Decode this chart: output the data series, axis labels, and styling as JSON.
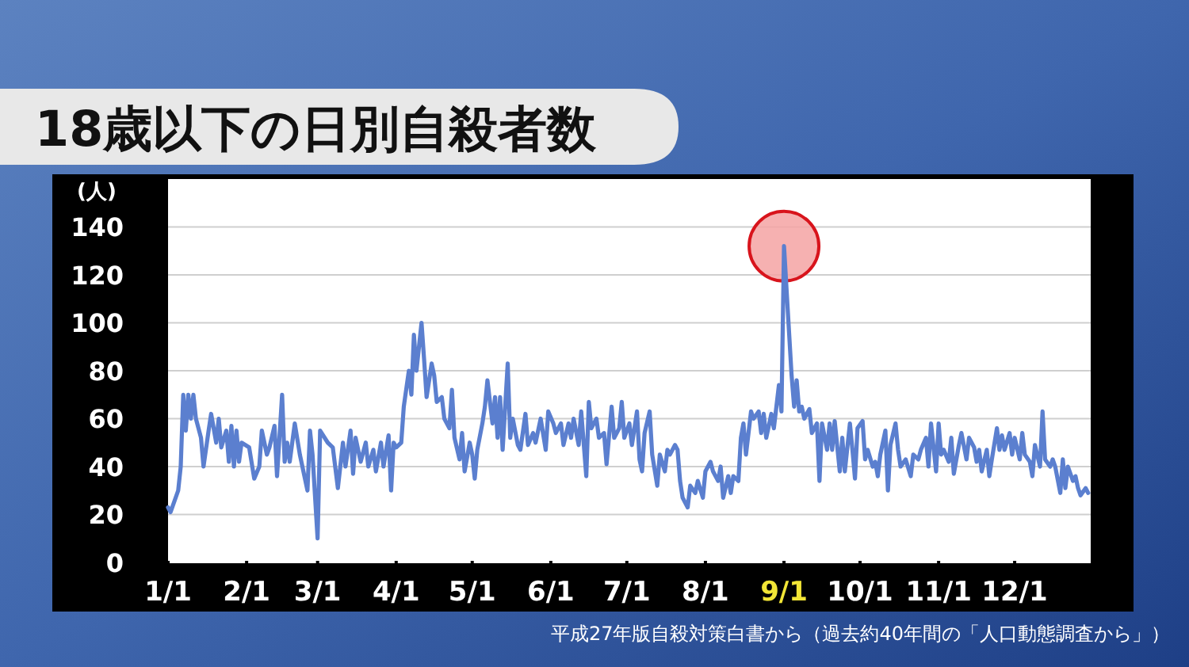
{
  "chart_data": {
    "type": "line",
    "title": "18歳以下の日別自殺者数",
    "ylabel": "(人)",
    "annotations": [
      "平成27年版自殺対策白書から（過去約40年間の「人口動態調査から」）"
    ],
    "x": [
      "--01-01",
      "--01-02",
      "--01-05",
      "--01-06",
      "--01-07",
      "--01-08",
      "--01-09",
      "--01-10",
      "--01-11",
      "--01-12",
      "--01-14",
      "--01-15",
      "--01-17",
      "--01-18",
      "--01-20",
      "--01-21",
      "--01-22",
      "--01-24",
      "--01-25",
      "--01-26",
      "--01-27",
      "--01-28",
      "--01-29",
      "--01-30",
      "--02-02",
      "--02-04",
      "--02-06",
      "--02-07",
      "--02-09",
      "--02-10",
      "--02-12",
      "--02-13",
      "--02-15",
      "--02-16",
      "--02-17",
      "--02-18",
      "--02-20",
      "--02-22",
      "--02-25",
      "--02-26",
      "--02-27",
      "--03-01",
      "--03-02",
      "--03-05",
      "--03-07",
      "--03-09",
      "--03-11",
      "--03-12",
      "--03-14",
      "--03-15",
      "--03-16",
      "--03-18",
      "--03-20",
      "--03-21",
      "--03-23",
      "--03-24",
      "--03-26",
      "--03-27",
      "--03-29",
      "--03-30",
      "--03-31",
      "--04-01",
      "--04-03",
      "--04-04",
      "--04-06",
      "--04-07",
      "--04-08",
      "--04-09",
      "--04-11",
      "--04-12",
      "--04-13",
      "--04-15",
      "--04-16",
      "--04-17",
      "--04-19",
      "--04-20",
      "--04-22",
      "--04-23",
      "--04-24",
      "--04-26",
      "--04-27",
      "--04-28",
      "--04-30",
      "--05-01",
      "--05-02",
      "--05-03",
      "--05-05",
      "--05-06",
      "--05-07",
      "--05-09",
      "--05-10",
      "--05-11",
      "--05-12",
      "--05-13",
      "--05-15",
      "--05-16",
      "--05-17",
      "--05-19",
      "--05-20",
      "--05-22",
      "--05-23",
      "--05-25",
      "--05-26",
      "--05-28",
      "--05-30",
      "--05-31",
      "--06-02",
      "--06-03",
      "--06-05",
      "--06-06",
      "--06-08",
      "--06-09",
      "--06-10",
      "--06-12",
      "--06-13",
      "--06-15",
      "--06-16",
      "--06-17",
      "--06-19",
      "--06-20",
      "--06-22",
      "--06-23",
      "--06-25",
      "--06-26",
      "--06-28",
      "--06-29",
      "--06-30",
      "--07-02",
      "--07-03",
      "--07-05",
      "--07-06",
      "--07-07",
      "--07-08",
      "--07-10",
      "--07-11",
      "--07-13",
      "--07-14",
      "--07-16",
      "--07-17",
      "--07-18",
      "--07-20",
      "--07-21",
      "--07-22",
      "--07-23",
      "--07-25",
      "--07-26",
      "--07-28",
      "--07-29",
      "--07-31",
      "--08-01",
      "--08-03",
      "--08-04",
      "--08-06",
      "--08-07",
      "--08-08",
      "--08-10",
      "--08-11",
      "--08-12",
      "--08-14",
      "--08-15",
      "--08-16",
      "--08-17",
      "--08-19",
      "--08-20",
      "--08-22",
      "--08-23",
      "--08-24",
      "--08-25",
      "--08-27",
      "--08-28",
      "--08-29",
      "--08-30",
      "--08-31",
      "--09-01",
      "--09-03",
      "--09-04",
      "--09-05",
      "--09-06",
      "--09-07",
      "--09-08",
      "--09-09",
      "--09-11",
      "--09-12",
      "--09-14",
      "--09-15",
      "--09-16",
      "--09-18",
      "--09-19",
      "--09-20",
      "--09-21",
      "--09-23",
      "--09-24",
      "--09-25",
      "--09-27",
      "--09-28",
      "--09-29",
      "--09-30",
      "--10-02",
      "--10-03",
      "--10-04",
      "--10-06",
      "--10-07",
      "--10-08",
      "--10-09",
      "--10-11",
      "--10-12",
      "--10-13",
      "--10-15",
      "--10-16",
      "--10-17",
      "--10-19",
      "--10-21",
      "--10-22",
      "--10-24",
      "--10-25",
      "--10-27",
      "--10-28",
      "--10-29",
      "--10-31",
      "--11-01",
      "--11-02",
      "--11-03",
      "--11-05",
      "--11-06",
      "--11-07",
      "--11-09",
      "--11-10",
      "--11-12",
      "--11-13",
      "--11-15",
      "--11-16",
      "--11-17",
      "--11-18",
      "--11-20",
      "--11-21",
      "--11-22",
      "--11-24",
      "--11-25",
      "--11-26",
      "--11-27",
      "--11-29",
      "--11-30",
      "--12-01",
      "--12-03",
      "--12-04",
      "--12-05",
      "--12-07",
      "--12-08",
      "--12-09",
      "--12-11",
      "--12-12",
      "--12-13",
      "--12-15",
      "--12-16",
      "--12-17",
      "--12-19",
      "--12-20",
      "--12-21",
      "--12-22",
      "--12-24",
      "--12-25",
      "--12-26",
      "--12-27",
      "--12-29",
      "--12-30"
    ],
    "series": [
      {
        "color": "#5b7fcf",
        "values": [
          23,
          21,
          30,
          40,
          70,
          55,
          70,
          60,
          70,
          60,
          52,
          40,
          55,
          62,
          50,
          60,
          48,
          55,
          42,
          57,
          40,
          55,
          42,
          50,
          48,
          35,
          40,
          55,
          45,
          48,
          57,
          36,
          70,
          42,
          50,
          42,
          58,
          45,
          30,
          55,
          45,
          10,
          55,
          50,
          48,
          31,
          50,
          40,
          55,
          37,
          52,
          42,
          50,
          40,
          47,
          38,
          50,
          40,
          53,
          30,
          50,
          48,
          50,
          65,
          80,
          70,
          95,
          80,
          100,
          85,
          69,
          83,
          78,
          67,
          69,
          60,
          56,
          72,
          52,
          43,
          54,
          38,
          50,
          45,
          35,
          47,
          58,
          65,
          76,
          58,
          69,
          52,
          69,
          47,
          83,
          52,
          60,
          49,
          47,
          62,
          49,
          54,
          50,
          60,
          47,
          63,
          58,
          54,
          58,
          49,
          58,
          52,
          60,
          49,
          63,
          36,
          67,
          56,
          60,
          52,
          54,
          41,
          65,
          52,
          56,
          67,
          52,
          58,
          49,
          63,
          43,
          38,
          54,
          63,
          45,
          32,
          45,
          38,
          47,
          45,
          49,
          47,
          34,
          27,
          23,
          32,
          29,
          34,
          27,
          38,
          42,
          38,
          34,
          40,
          27,
          36,
          29,
          36,
          34,
          52,
          58,
          45,
          63,
          60,
          63,
          54,
          62,
          52,
          62,
          56,
          65,
          74,
          63,
          132,
          96,
          78,
          65,
          76,
          63,
          65,
          60,
          64,
          54,
          58,
          34,
          58,
          47,
          58,
          47,
          59,
          38,
          52,
          38,
          58,
          47,
          35,
          56,
          59,
          43,
          47,
          40,
          42,
          36,
          45,
          55,
          30,
          49,
          58,
          47,
          40,
          43,
          36,
          45,
          43,
          47,
          52,
          40,
          58,
          38,
          58,
          45,
          47,
          42,
          52,
          37,
          49,
          54,
          43,
          52,
          48,
          42,
          47,
          38,
          47,
          36,
          43,
          56,
          47,
          53,
          47,
          54,
          45,
          52,
          43,
          54,
          45,
          42,
          36,
          49,
          40,
          63,
          43,
          40,
          43,
          40,
          29,
          43,
          31,
          40,
          34,
          36,
          31,
          28,
          31,
          29
        ]
      }
    ],
    "xlim": [
      "--01-01",
      "--12-31"
    ],
    "xticks": [
      {
        "value": "--01-01",
        "label": "1/1"
      },
      {
        "value": "--02-01",
        "label": "2/1"
      },
      {
        "value": "--03-01",
        "label": "3/1"
      },
      {
        "value": "--04-01",
        "label": "4/1"
      },
      {
        "value": "--05-01",
        "label": "5/1"
      },
      {
        "value": "--06-01",
        "label": "6/1"
      },
      {
        "value": "--07-01",
        "label": "7/1"
      },
      {
        "value": "--08-01",
        "label": "8/1"
      },
      {
        "value": "--09-01",
        "label": "9/1"
      },
      {
        "value": "--10-01",
        "label": "10/1"
      },
      {
        "value": "--11-01",
        "label": "11/1"
      },
      {
        "value": "--12-01",
        "label": "12/1"
      }
    ],
    "ylim": [
      0,
      160
    ],
    "yticks": [
      0,
      20,
      40,
      60,
      80,
      100,
      120,
      140
    ],
    "grid": "y",
    "marker": "none",
    "line_style": "solid"
  }
}
